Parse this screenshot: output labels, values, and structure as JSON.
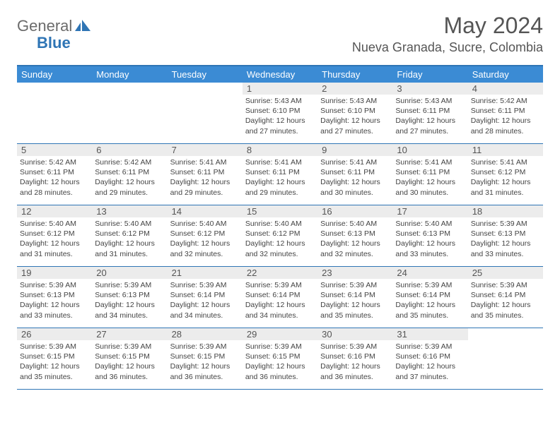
{
  "brand": {
    "text1": "General",
    "text2": "Blue",
    "color": "#2f75b5"
  },
  "title": "May 2024",
  "subtitle": "Nueva Granada, Sucre, Colombia",
  "colors": {
    "header_bg": "#3b8bd4",
    "border": "#2f75b5",
    "daynum_bg": "#ececec",
    "text": "#3a3a3a"
  },
  "day_headers": [
    "Sunday",
    "Monday",
    "Tuesday",
    "Wednesday",
    "Thursday",
    "Friday",
    "Saturday"
  ],
  "weeks": [
    [
      {
        "n": "",
        "lines": []
      },
      {
        "n": "",
        "lines": []
      },
      {
        "n": "",
        "lines": []
      },
      {
        "n": "1",
        "lines": [
          "Sunrise: 5:43 AM",
          "Sunset: 6:10 PM",
          "Daylight: 12 hours and 27 minutes."
        ]
      },
      {
        "n": "2",
        "lines": [
          "Sunrise: 5:43 AM",
          "Sunset: 6:10 PM",
          "Daylight: 12 hours and 27 minutes."
        ]
      },
      {
        "n": "3",
        "lines": [
          "Sunrise: 5:43 AM",
          "Sunset: 6:11 PM",
          "Daylight: 12 hours and 27 minutes."
        ]
      },
      {
        "n": "4",
        "lines": [
          "Sunrise: 5:42 AM",
          "Sunset: 6:11 PM",
          "Daylight: 12 hours and 28 minutes."
        ]
      }
    ],
    [
      {
        "n": "5",
        "lines": [
          "Sunrise: 5:42 AM",
          "Sunset: 6:11 PM",
          "Daylight: 12 hours and 28 minutes."
        ]
      },
      {
        "n": "6",
        "lines": [
          "Sunrise: 5:42 AM",
          "Sunset: 6:11 PM",
          "Daylight: 12 hours and 29 minutes."
        ]
      },
      {
        "n": "7",
        "lines": [
          "Sunrise: 5:41 AM",
          "Sunset: 6:11 PM",
          "Daylight: 12 hours and 29 minutes."
        ]
      },
      {
        "n": "8",
        "lines": [
          "Sunrise: 5:41 AM",
          "Sunset: 6:11 PM",
          "Daylight: 12 hours and 29 minutes."
        ]
      },
      {
        "n": "9",
        "lines": [
          "Sunrise: 5:41 AM",
          "Sunset: 6:11 PM",
          "Daylight: 12 hours and 30 minutes."
        ]
      },
      {
        "n": "10",
        "lines": [
          "Sunrise: 5:41 AM",
          "Sunset: 6:11 PM",
          "Daylight: 12 hours and 30 minutes."
        ]
      },
      {
        "n": "11",
        "lines": [
          "Sunrise: 5:41 AM",
          "Sunset: 6:12 PM",
          "Daylight: 12 hours and 31 minutes."
        ]
      }
    ],
    [
      {
        "n": "12",
        "lines": [
          "Sunrise: 5:40 AM",
          "Sunset: 6:12 PM",
          "Daylight: 12 hours and 31 minutes."
        ]
      },
      {
        "n": "13",
        "lines": [
          "Sunrise: 5:40 AM",
          "Sunset: 6:12 PM",
          "Daylight: 12 hours and 31 minutes."
        ]
      },
      {
        "n": "14",
        "lines": [
          "Sunrise: 5:40 AM",
          "Sunset: 6:12 PM",
          "Daylight: 12 hours and 32 minutes."
        ]
      },
      {
        "n": "15",
        "lines": [
          "Sunrise: 5:40 AM",
          "Sunset: 6:12 PM",
          "Daylight: 12 hours and 32 minutes."
        ]
      },
      {
        "n": "16",
        "lines": [
          "Sunrise: 5:40 AM",
          "Sunset: 6:13 PM",
          "Daylight: 12 hours and 32 minutes."
        ]
      },
      {
        "n": "17",
        "lines": [
          "Sunrise: 5:40 AM",
          "Sunset: 6:13 PM",
          "Daylight: 12 hours and 33 minutes."
        ]
      },
      {
        "n": "18",
        "lines": [
          "Sunrise: 5:39 AM",
          "Sunset: 6:13 PM",
          "Daylight: 12 hours and 33 minutes."
        ]
      }
    ],
    [
      {
        "n": "19",
        "lines": [
          "Sunrise: 5:39 AM",
          "Sunset: 6:13 PM",
          "Daylight: 12 hours and 33 minutes."
        ]
      },
      {
        "n": "20",
        "lines": [
          "Sunrise: 5:39 AM",
          "Sunset: 6:13 PM",
          "Daylight: 12 hours and 34 minutes."
        ]
      },
      {
        "n": "21",
        "lines": [
          "Sunrise: 5:39 AM",
          "Sunset: 6:14 PM",
          "Daylight: 12 hours and 34 minutes."
        ]
      },
      {
        "n": "22",
        "lines": [
          "Sunrise: 5:39 AM",
          "Sunset: 6:14 PM",
          "Daylight: 12 hours and 34 minutes."
        ]
      },
      {
        "n": "23",
        "lines": [
          "Sunrise: 5:39 AM",
          "Sunset: 6:14 PM",
          "Daylight: 12 hours and 35 minutes."
        ]
      },
      {
        "n": "24",
        "lines": [
          "Sunrise: 5:39 AM",
          "Sunset: 6:14 PM",
          "Daylight: 12 hours and 35 minutes."
        ]
      },
      {
        "n": "25",
        "lines": [
          "Sunrise: 5:39 AM",
          "Sunset: 6:14 PM",
          "Daylight: 12 hours and 35 minutes."
        ]
      }
    ],
    [
      {
        "n": "26",
        "lines": [
          "Sunrise: 5:39 AM",
          "Sunset: 6:15 PM",
          "Daylight: 12 hours and 35 minutes."
        ]
      },
      {
        "n": "27",
        "lines": [
          "Sunrise: 5:39 AM",
          "Sunset: 6:15 PM",
          "Daylight: 12 hours and 36 minutes."
        ]
      },
      {
        "n": "28",
        "lines": [
          "Sunrise: 5:39 AM",
          "Sunset: 6:15 PM",
          "Daylight: 12 hours and 36 minutes."
        ]
      },
      {
        "n": "29",
        "lines": [
          "Sunrise: 5:39 AM",
          "Sunset: 6:15 PM",
          "Daylight: 12 hours and 36 minutes."
        ]
      },
      {
        "n": "30",
        "lines": [
          "Sunrise: 5:39 AM",
          "Sunset: 6:16 PM",
          "Daylight: 12 hours and 36 minutes."
        ]
      },
      {
        "n": "31",
        "lines": [
          "Sunrise: 5:39 AM",
          "Sunset: 6:16 PM",
          "Daylight: 12 hours and 37 minutes."
        ]
      },
      {
        "n": "",
        "lines": []
      }
    ]
  ]
}
